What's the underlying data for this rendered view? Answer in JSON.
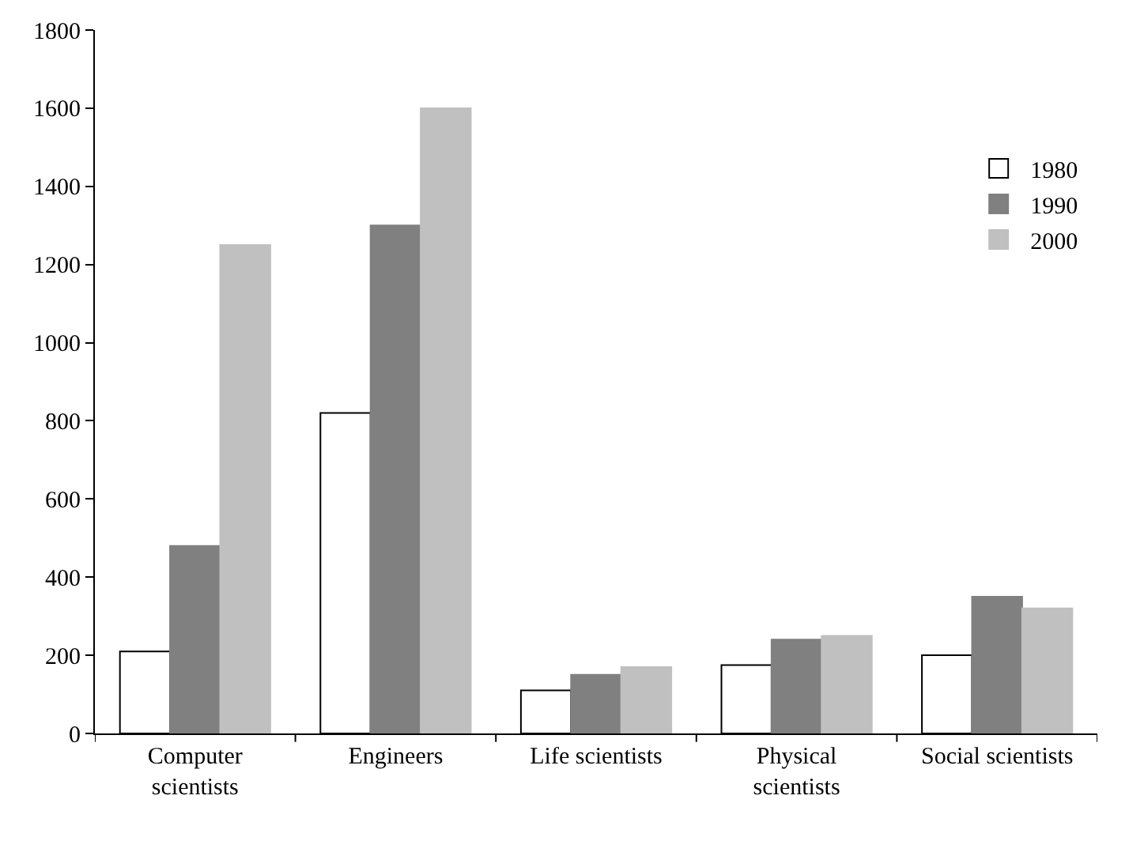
{
  "chart_data": {
    "type": "bar",
    "categories": [
      "Computer\nscientists",
      "Engineers",
      "Life scientists",
      "Physical\nscientists",
      "Social scientists"
    ],
    "series": [
      {
        "name": "1980",
        "color": "#ffffff",
        "values": [
          210,
          820,
          110,
          175,
          200
        ]
      },
      {
        "name": "1990",
        "color": "#808080",
        "values": [
          480,
          1300,
          150,
          240,
          350
        ]
      },
      {
        "name": "2000",
        "color": "#c0c0c0",
        "values": [
          1250,
          1600,
          170,
          250,
          320
        ]
      }
    ],
    "ylim": [
      0,
      1800
    ],
    "yticks": [
      0,
      200,
      400,
      600,
      800,
      1000,
      1200,
      1400,
      1600,
      1800
    ],
    "legend": "top right"
  }
}
